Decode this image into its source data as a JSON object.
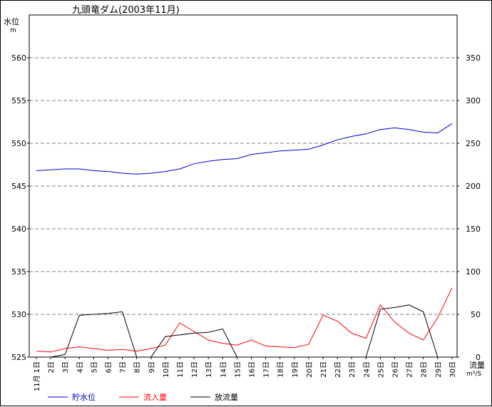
{
  "chart_data": {
    "type": "line",
    "title": "九頭竜ダム(2003年11月)",
    "left_axis": {
      "label": "水位",
      "unit": "m",
      "range": [
        525,
        565
      ],
      "ticks": [
        525,
        530,
        535,
        540,
        545,
        550,
        555,
        560
      ]
    },
    "right_axis": {
      "label": "流量",
      "unit": "m³/S",
      "range": [
        0,
        400
      ],
      "ticks": [
        0,
        50,
        100,
        150,
        200,
        250,
        300,
        350
      ]
    },
    "x_labels": [
      "11月 1日",
      "2日",
      "3日",
      "4日",
      "5日",
      "6日",
      "7日",
      "8日",
      "9日",
      "10日",
      "11日",
      "12日",
      "13日",
      "14日",
      "15日",
      "16日",
      "17日",
      "18日",
      "19日",
      "20日",
      "21日",
      "22日",
      "23日",
      "24日",
      "25日",
      "26日",
      "27日",
      "28日",
      "29日",
      "30日"
    ],
    "grid": "horizontal-dashed",
    "legend_position": "bottom",
    "series": [
      {
        "name": "貯水位",
        "axis": "left",
        "color": "#0000cc",
        "values": [
          546.8,
          546.9,
          547.0,
          547.0,
          546.8,
          546.7,
          546.5,
          546.4,
          546.5,
          546.7,
          547.0,
          547.6,
          547.9,
          548.1,
          548.2,
          548.7,
          548.9,
          549.1,
          549.2,
          549.3,
          549.8,
          550.4,
          550.8,
          551.1,
          551.6,
          551.8,
          551.6,
          551.3,
          551.2,
          552.3
        ]
      },
      {
        "name": "流入量",
        "axis": "right",
        "color": "#ff0000",
        "values": [
          7,
          6,
          10,
          12,
          10,
          8,
          9,
          7,
          10,
          14,
          40,
          30,
          20,
          16,
          14,
          20,
          13,
          12,
          11,
          15,
          49,
          42,
          28,
          22,
          61,
          41,
          28,
          20,
          46,
          81
        ]
      },
      {
        "name": "放流量",
        "axis": "right",
        "color": "#000000",
        "values": [
          null,
          0,
          3,
          49,
          50,
          51,
          53,
          0,
          0,
          24,
          26,
          28,
          29,
          33,
          0,
          null,
          null,
          null,
          null,
          null,
          null,
          null,
          null,
          0,
          56,
          58,
          61,
          53,
          0,
          null
        ]
      }
    ]
  }
}
